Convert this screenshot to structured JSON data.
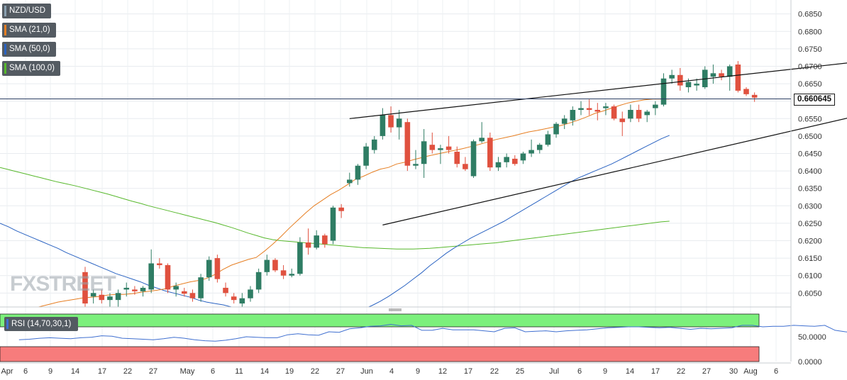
{
  "legend": {
    "pair": "NZD/USD",
    "sma21": "SMA (21,0)",
    "sma50": "SMA (50,0)",
    "sma100": "SMA (100,0)",
    "rsi": "RSI (14,70,30,1)"
  },
  "last_price_label": "0.660645",
  "watermark": "FXSTREET",
  "colors": {
    "bull": "#2f7d64",
    "bear": "#e0513f",
    "sma21": "#e67e22",
    "sma50": "#2a63c2",
    "sma100": "#57b82c",
    "rsi_line": "#3f6fd0",
    "overbought": "#7cf07c",
    "oversold": "#f77c7c"
  },
  "chart_data": {
    "type": "candlestick",
    "title": "NZD/USD",
    "y_ticks": [
      "0.6850",
      "0.6800",
      "0.6750",
      "0.6700",
      "0.6650",
      "0.6600",
      "0.6550",
      "0.6500",
      "0.6450",
      "0.6400",
      "0.6350",
      "0.6300",
      "0.6250",
      "0.6200",
      "0.6150",
      "0.6100",
      "0.6050"
    ],
    "ylim": [
      0.601,
      0.689
    ],
    "x_ticks": [
      "Apr",
      "6",
      "9",
      "14",
      "17",
      "22",
      "27",
      "May",
      "6",
      "11",
      "14",
      "19",
      "22",
      "27",
      "Jun",
      "4",
      "9",
      "12",
      "17",
      "22",
      "25",
      "Jul",
      "6",
      "9",
      "14",
      "17",
      "22",
      "27",
      "30",
      "Aug",
      "6"
    ],
    "last_price": 0.660645,
    "candles": [
      {
        "o": 0.611,
        "h": 0.6125,
        "l": 0.6005,
        "c": 0.602
      },
      {
        "o": 0.604,
        "h": 0.606,
        "l": 0.602,
        "c": 0.605
      },
      {
        "o": 0.6045,
        "h": 0.606,
        "l": 0.602,
        "c": 0.603
      },
      {
        "o": 0.603,
        "h": 0.605,
        "l": 0.601,
        "c": 0.604
      },
      {
        "o": 0.603,
        "h": 0.606,
        "l": 0.601,
        "c": 0.605
      },
      {
        "o": 0.606,
        "h": 0.608,
        "l": 0.604,
        "c": 0.6065
      },
      {
        "o": 0.606,
        "h": 0.607,
        "l": 0.6045,
        "c": 0.6055
      },
      {
        "o": 0.6055,
        "h": 0.607,
        "l": 0.604,
        "c": 0.6065
      },
      {
        "o": 0.606,
        "h": 0.6175,
        "l": 0.605,
        "c": 0.6135
      },
      {
        "o": 0.6135,
        "h": 0.615,
        "l": 0.612,
        "c": 0.613
      },
      {
        "o": 0.613,
        "h": 0.6135,
        "l": 0.605,
        "c": 0.606
      },
      {
        "o": 0.606,
        "h": 0.608,
        "l": 0.604,
        "c": 0.607
      },
      {
        "o": 0.6055,
        "h": 0.6065,
        "l": 0.604,
        "c": 0.6048
      },
      {
        "o": 0.605,
        "h": 0.606,
        "l": 0.6025,
        "c": 0.6035
      },
      {
        "o": 0.6035,
        "h": 0.6105,
        "l": 0.6025,
        "c": 0.6095
      },
      {
        "o": 0.6095,
        "h": 0.6155,
        "l": 0.6085,
        "c": 0.6145
      },
      {
        "o": 0.615,
        "h": 0.616,
        "l": 0.608,
        "c": 0.609
      },
      {
        "o": 0.6065,
        "h": 0.608,
        "l": 0.604,
        "c": 0.605
      },
      {
        "o": 0.604,
        "h": 0.605,
        "l": 0.602,
        "c": 0.603
      },
      {
        "o": 0.602,
        "h": 0.605,
        "l": 0.601,
        "c": 0.6035
      },
      {
        "o": 0.6035,
        "h": 0.607,
        "l": 0.6025,
        "c": 0.606
      },
      {
        "o": 0.606,
        "h": 0.612,
        "l": 0.605,
        "c": 0.611
      },
      {
        "o": 0.611,
        "h": 0.616,
        "l": 0.61,
        "c": 0.6145
      },
      {
        "o": 0.6145,
        "h": 0.615,
        "l": 0.611,
        "c": 0.6115
      },
      {
        "o": 0.6115,
        "h": 0.613,
        "l": 0.609,
        "c": 0.61
      },
      {
        "o": 0.61,
        "h": 0.612,
        "l": 0.6095,
        "c": 0.6105
      },
      {
        "o": 0.6105,
        "h": 0.621,
        "l": 0.61,
        "c": 0.6195
      },
      {
        "o": 0.6195,
        "h": 0.6235,
        "l": 0.616,
        "c": 0.618
      },
      {
        "o": 0.618,
        "h": 0.623,
        "l": 0.6175,
        "c": 0.6215
      },
      {
        "o": 0.6215,
        "h": 0.622,
        "l": 0.618,
        "c": 0.619
      },
      {
        "o": 0.62,
        "h": 0.63,
        "l": 0.619,
        "c": 0.6295
      },
      {
        "o": 0.6295,
        "h": 0.6305,
        "l": 0.6265,
        "c": 0.6285
      },
      {
        "o": 0.6365,
        "h": 0.6395,
        "l": 0.6355,
        "c": 0.6375
      },
      {
        "o": 0.6375,
        "h": 0.642,
        "l": 0.636,
        "c": 0.6415
      },
      {
        "o": 0.6415,
        "h": 0.648,
        "l": 0.6405,
        "c": 0.647
      },
      {
        "o": 0.646,
        "h": 0.65,
        "l": 0.645,
        "c": 0.649
      },
      {
        "o": 0.65,
        "h": 0.658,
        "l": 0.649,
        "c": 0.656
      },
      {
        "o": 0.656,
        "h": 0.6585,
        "l": 0.651,
        "c": 0.6525
      },
      {
        "o": 0.6525,
        "h": 0.6575,
        "l": 0.649,
        "c": 0.655
      },
      {
        "o": 0.654,
        "h": 0.655,
        "l": 0.64,
        "c": 0.6415
      },
      {
        "o": 0.6415,
        "h": 0.646,
        "l": 0.6405,
        "c": 0.642
      },
      {
        "o": 0.642,
        "h": 0.652,
        "l": 0.638,
        "c": 0.6485
      },
      {
        "o": 0.6475,
        "h": 0.651,
        "l": 0.645,
        "c": 0.646
      },
      {
        "o": 0.646,
        "h": 0.6475,
        "l": 0.642,
        "c": 0.6465
      },
      {
        "o": 0.647,
        "h": 0.65,
        "l": 0.645,
        "c": 0.646
      },
      {
        "o": 0.6455,
        "h": 0.647,
        "l": 0.641,
        "c": 0.642
      },
      {
        "o": 0.642,
        "h": 0.644,
        "l": 0.64,
        "c": 0.6405
      },
      {
        "o": 0.6385,
        "h": 0.649,
        "l": 0.638,
        "c": 0.6485
      },
      {
        "o": 0.6485,
        "h": 0.654,
        "l": 0.648,
        "c": 0.6495
      },
      {
        "o": 0.6495,
        "h": 0.651,
        "l": 0.64,
        "c": 0.641
      },
      {
        "o": 0.641,
        "h": 0.644,
        "l": 0.64,
        "c": 0.6425
      },
      {
        "o": 0.6425,
        "h": 0.645,
        "l": 0.641,
        "c": 0.644
      },
      {
        "o": 0.6435,
        "h": 0.6445,
        "l": 0.6415,
        "c": 0.642
      },
      {
        "o": 0.643,
        "h": 0.6455,
        "l": 0.642,
        "c": 0.645
      },
      {
        "o": 0.645,
        "h": 0.649,
        "l": 0.644,
        "c": 0.646
      },
      {
        "o": 0.646,
        "h": 0.648,
        "l": 0.645,
        "c": 0.6475
      },
      {
        "o": 0.6475,
        "h": 0.6515,
        "l": 0.647,
        "c": 0.6505
      },
      {
        "o": 0.6505,
        "h": 0.654,
        "l": 0.6495,
        "c": 0.6535
      },
      {
        "o": 0.6535,
        "h": 0.656,
        "l": 0.652,
        "c": 0.655
      },
      {
        "o": 0.6545,
        "h": 0.6585,
        "l": 0.653,
        "c": 0.6575
      },
      {
        "o": 0.6575,
        "h": 0.66,
        "l": 0.656,
        "c": 0.658
      },
      {
        "o": 0.658,
        "h": 0.6605,
        "l": 0.656,
        "c": 0.6575
      },
      {
        "o": 0.6575,
        "h": 0.6595,
        "l": 0.6545,
        "c": 0.657
      },
      {
        "o": 0.658,
        "h": 0.6595,
        "l": 0.656,
        "c": 0.6585
      },
      {
        "o": 0.6585,
        "h": 0.659,
        "l": 0.6545,
        "c": 0.655
      },
      {
        "o": 0.655,
        "h": 0.657,
        "l": 0.65,
        "c": 0.654
      },
      {
        "o": 0.655,
        "h": 0.659,
        "l": 0.654,
        "c": 0.6575
      },
      {
        "o": 0.6575,
        "h": 0.659,
        "l": 0.654,
        "c": 0.655
      },
      {
        "o": 0.656,
        "h": 0.6575,
        "l": 0.654,
        "c": 0.657
      },
      {
        "o": 0.658,
        "h": 0.66,
        "l": 0.656,
        "c": 0.659
      },
      {
        "o": 0.659,
        "h": 0.668,
        "l": 0.6585,
        "c": 0.6665
      },
      {
        "o": 0.6665,
        "h": 0.669,
        "l": 0.665,
        "c": 0.6675
      },
      {
        "o": 0.6675,
        "h": 0.6695,
        "l": 0.663,
        "c": 0.6645
      },
      {
        "o": 0.664,
        "h": 0.6665,
        "l": 0.6625,
        "c": 0.6655
      },
      {
        "o": 0.6645,
        "h": 0.6665,
        "l": 0.663,
        "c": 0.665
      },
      {
        "o": 0.664,
        "h": 0.67,
        "l": 0.6635,
        "c": 0.669
      },
      {
        "o": 0.667,
        "h": 0.6705,
        "l": 0.665,
        "c": 0.668
      },
      {
        "o": 0.668,
        "h": 0.669,
        "l": 0.666,
        "c": 0.667
      },
      {
        "o": 0.667,
        "h": 0.6705,
        "l": 0.663,
        "c": 0.67
      },
      {
        "o": 0.6705,
        "h": 0.6715,
        "l": 0.6625,
        "c": 0.663
      },
      {
        "o": 0.6635,
        "h": 0.664,
        "l": 0.6615,
        "c": 0.662
      },
      {
        "o": 0.6618,
        "h": 0.6625,
        "l": 0.6598,
        "c": 0.661
      }
    ],
    "sma21": [
      0.599,
      0.5994,
      0.5998,
      0.6002,
      0.6006,
      0.6012,
      0.6018,
      0.6024,
      0.6028,
      0.6032,
      0.6036,
      0.6038,
      0.604,
      0.6044,
      0.6046,
      0.6046,
      0.6048,
      0.6052,
      0.6055,
      0.6058,
      0.6062,
      0.607,
      0.6076,
      0.6082,
      0.6086,
      0.6092,
      0.6103,
      0.6118,
      0.613,
      0.6138,
      0.6146,
      0.6152,
      0.617,
      0.619,
      0.6212,
      0.6236,
      0.6258,
      0.628,
      0.63,
      0.6316,
      0.6332,
      0.6345,
      0.636,
      0.6376,
      0.6385,
      0.6396,
      0.6405,
      0.641,
      0.642,
      0.6425,
      0.6432,
      0.6438,
      0.6444,
      0.6449,
      0.6454,
      0.6459,
      0.6464,
      0.647,
      0.6476,
      0.6483,
      0.649,
      0.6495,
      0.65,
      0.6506,
      0.6512,
      0.6516,
      0.6521,
      0.6526,
      0.6531,
      0.6538,
      0.6546,
      0.6555,
      0.6565,
      0.6572,
      0.658,
      0.6588,
      0.6595,
      0.66,
      0.6604,
      0.6606,
      0.6606,
      0.6606
    ],
    "sma50": [
      0.625,
      0.624,
      0.6228,
      0.6218,
      0.6208,
      0.6198,
      0.6188,
      0.6178,
      0.6166,
      0.6156,
      0.6146,
      0.6136,
      0.6126,
      0.6116,
      0.6106,
      0.6098,
      0.609,
      0.6082,
      0.6072,
      0.6064,
      0.6056,
      0.605,
      0.6044,
      0.6038,
      0.603,
      0.6024,
      0.602,
      0.6016,
      0.601,
      0.6006,
      0.6002,
      0.5998,
      0.599,
      0.5985,
      0.598,
      0.5978,
      0.5976,
      0.5974,
      0.5972,
      0.5972,
      0.5975,
      0.598,
      0.5986,
      0.5994,
      0.6004,
      0.6014,
      0.6026,
      0.604,
      0.6056,
      0.6072,
      0.609,
      0.6108,
      0.6128,
      0.6146,
      0.6164,
      0.618,
      0.6194,
      0.6208,
      0.622,
      0.6232,
      0.6244,
      0.6256,
      0.627,
      0.6284,
      0.6298,
      0.6312,
      0.6326,
      0.634,
      0.6354,
      0.6368,
      0.638,
      0.639,
      0.64,
      0.641,
      0.642,
      0.6432,
      0.6444,
      0.6456,
      0.6468,
      0.648,
      0.6492,
      0.6502
    ],
    "sma100": [
      0.641,
      0.6404,
      0.6398,
      0.6392,
      0.6386,
      0.638,
      0.6374,
      0.6368,
      0.6363,
      0.6358,
      0.6352,
      0.6346,
      0.634,
      0.6334,
      0.6327,
      0.632,
      0.6313,
      0.6307,
      0.63,
      0.6294,
      0.6288,
      0.6282,
      0.6276,
      0.627,
      0.6264,
      0.6258,
      0.6252,
      0.6245,
      0.6238,
      0.623,
      0.6222,
      0.6215,
      0.6208,
      0.6203,
      0.62,
      0.6198,
      0.6196,
      0.6194,
      0.6192,
      0.619,
      0.6188,
      0.6186,
      0.6184,
      0.6182,
      0.618,
      0.6179,
      0.6178,
      0.6177,
      0.6176,
      0.6176,
      0.6176,
      0.6177,
      0.6178,
      0.618,
      0.6182,
      0.6184,
      0.6186,
      0.6188,
      0.619,
      0.6192,
      0.6194,
      0.6197,
      0.62,
      0.6203,
      0.6206,
      0.6209,
      0.6212,
      0.6215,
      0.6218,
      0.6221,
      0.6224,
      0.6227,
      0.623,
      0.6233,
      0.6236,
      0.6239,
      0.6242,
      0.6245,
      0.6248,
      0.6251,
      0.6254,
      0.6256
    ],
    "trendlines": [
      {
        "name": "upper",
        "from": {
          "i": 32,
          "y": 0.655
        },
        "to": {
          "i": 103,
          "y": 0.6738
        }
      },
      {
        "name": "lower",
        "from": {
          "i": 36,
          "y": 0.6245
        },
        "to": {
          "i": 103,
          "y": 0.661
        }
      }
    ],
    "rsi": {
      "y_ticks": [
        "50.0000",
        "0.0000"
      ],
      "ylim": [
        0,
        100
      ],
      "overbought": 70,
      "oversold": 30,
      "values": [
        44,
        45,
        47,
        48,
        47,
        46,
        48,
        49,
        52,
        51,
        47,
        46,
        45,
        44,
        46,
        49,
        47,
        44,
        42,
        41,
        43,
        46,
        50,
        49,
        48,
        48,
        54,
        56,
        54,
        53,
        60,
        59,
        66,
        68,
        71,
        72,
        75,
        72,
        73,
        63,
        63,
        67,
        64,
        64,
        64,
        62,
        60,
        67,
        68,
        60,
        61,
        62,
        60,
        62,
        63,
        64,
        66,
        68,
        69,
        70,
        70,
        69,
        68,
        69,
        67,
        65,
        67,
        66,
        67,
        68,
        73,
        73,
        70,
        71,
        71,
        73,
        72,
        71,
        73,
        63,
        60,
        58
      ]
    }
  }
}
